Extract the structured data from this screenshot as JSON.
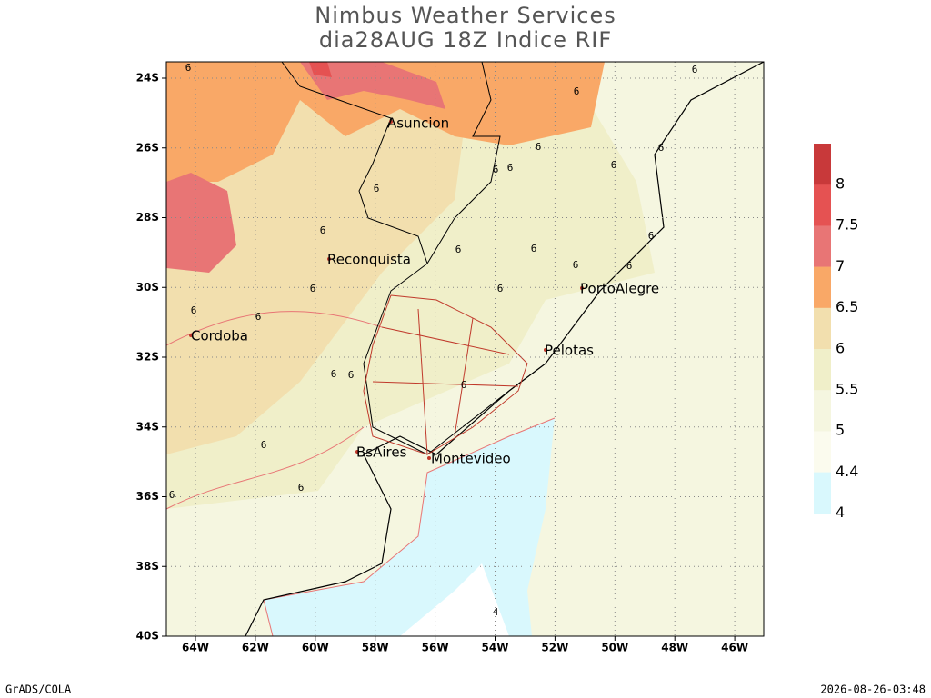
{
  "header": {
    "title": [
      "Nimbus Weather Services",
      "dia28AUG 18Z Indice RIF"
    ]
  },
  "map": {
    "lat_labels": [
      "24S",
      "26S",
      "28S",
      "30S",
      "32S",
      "34S",
      "36S",
      "38S",
      "40S"
    ],
    "lon_labels": [
      "64W",
      "62W",
      "60W",
      "58W",
      "56W",
      "54W",
      "52W",
      "50W",
      "48W",
      "46W"
    ],
    "cities": [
      "Asuncion",
      "Reconquista",
      "PortoAlegre",
      "Cordoba",
      "Pelotas",
      "BsAires",
      "Montevideo"
    ],
    "contour_labels": [
      "6",
      "4"
    ]
  },
  "legend": {
    "labels": [
      "8",
      "7.5",
      "7",
      "6.5",
      "6",
      "5.5",
      "5",
      "4.4",
      "4"
    ]
  },
  "footer": {
    "left": "GrADS/COLA",
    "right": "2026-08-26-03:48"
  }
}
